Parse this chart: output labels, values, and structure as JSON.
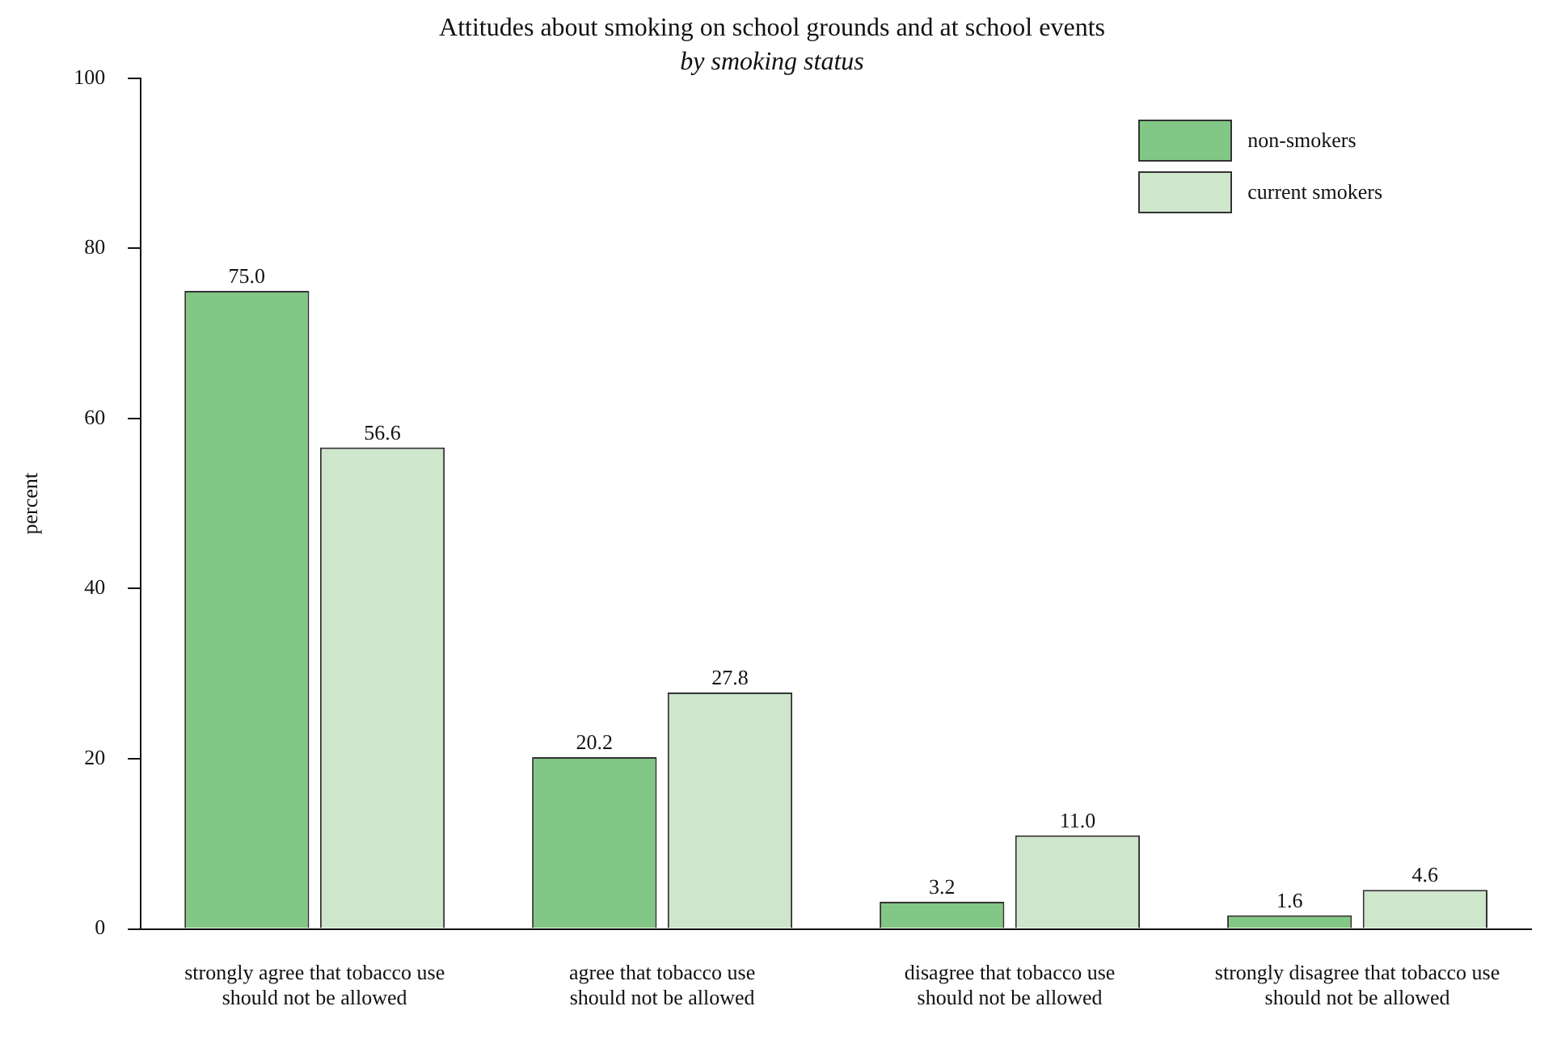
{
  "chart_data": {
    "type": "bar",
    "title": "Attitudes about smoking on school grounds and at school events",
    "subtitle": "by smoking status",
    "ylabel": "percent",
    "categories": [
      "strongly agree that tobacco use\nshould not be allowed",
      "agree that tobacco use\nshould not be allowed",
      "disagree that tobacco use\nshould not be allowed",
      "strongly disagree that tobacco use\nshould not be allowed"
    ],
    "series": [
      {
        "name": "non-smokers",
        "color": "#82c785",
        "values": [
          75.0,
          20.2,
          3.2,
          1.6
        ],
        "value_labels": [
          "75.0",
          "20.2",
          "3.2",
          "1.6"
        ]
      },
      {
        "name": "current smokers",
        "color": "#cde6cc",
        "values": [
          56.6,
          27.8,
          11.0,
          4.6
        ],
        "value_labels": [
          "56.6",
          "27.8",
          "11.0",
          "4.6"
        ]
      }
    ],
    "ylim": [
      0,
      100
    ],
    "yticks": [
      0,
      20,
      40,
      60,
      80,
      100
    ],
    "grid": false,
    "legend": "top right"
  }
}
